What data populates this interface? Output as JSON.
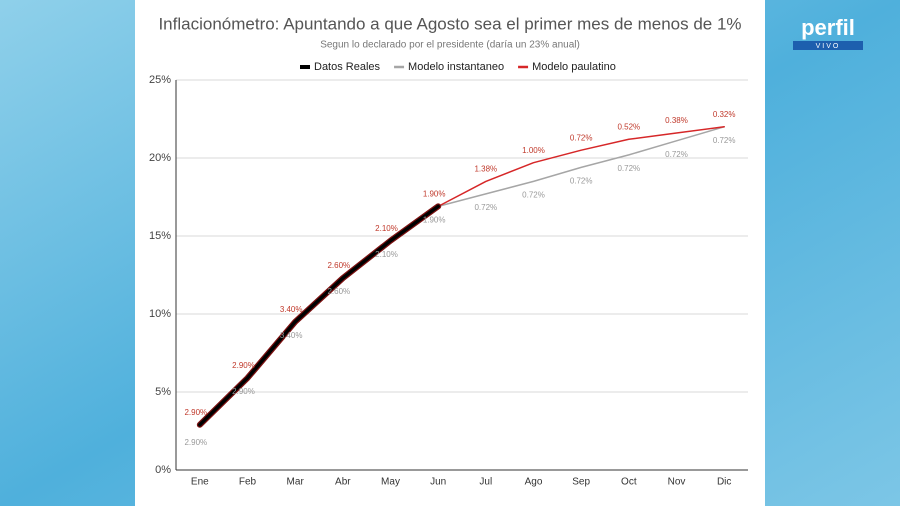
{
  "chart_data": {
    "type": "line",
    "title": "Inflacionómetro: Apuntando a que Agosto sea el primer mes de menos de 1%",
    "subtitle": "Segun lo declarado por el presidente (daría un 23% anual)",
    "categories": [
      "Ene",
      "Feb",
      "Mar",
      "Abr",
      "May",
      "Jun",
      "Jul",
      "Ago",
      "Sep",
      "Oct",
      "Nov",
      "Dic"
    ],
    "series": [
      {
        "name": "Datos Reales",
        "color": "#000000",
        "values": [
          2.9,
          5.9,
          9.5,
          12.3,
          14.7,
          16.9,
          null,
          null,
          null,
          null,
          null,
          null
        ]
      },
      {
        "name": "Modelo instantaneo",
        "color": "#a6a6a6",
        "values": [
          2.9,
          5.9,
          9.5,
          12.3,
          14.7,
          16.9,
          17.7,
          18.5,
          19.4,
          20.2,
          21.1,
          22.0
        ],
        "point_labels": [
          "2.90%",
          "2.90%",
          "3.40%",
          "2.60%",
          "2.10%",
          "1.90%",
          "0.72%",
          "0.72%",
          "0.72%",
          "0.72%",
          "0.72%",
          "0.72%"
        ]
      },
      {
        "name": "Modelo paulatino",
        "color": "#d62728",
        "values": [
          2.9,
          5.9,
          9.5,
          12.3,
          14.7,
          16.9,
          18.5,
          19.7,
          20.5,
          21.2,
          21.6,
          22.0
        ],
        "point_labels": [
          "2.90%",
          "2.90%",
          "3.40%",
          "2.60%",
          "2.10%",
          "1.90%",
          "1.38%",
          "1.00%",
          "0.72%",
          "0.52%",
          "0.38%",
          "0.32%"
        ]
      }
    ],
    "ylim": [
      0,
      25
    ],
    "yticks": [
      {
        "value": 0,
        "label": "0%"
      },
      {
        "value": 5,
        "label": "5%"
      },
      {
        "value": 10,
        "label": "10%"
      },
      {
        "value": 15,
        "label": "15%"
      },
      {
        "value": 20,
        "label": "20%"
      },
      {
        "value": 25,
        "label": "25%"
      }
    ],
    "grid": true,
    "legend": "top"
  },
  "logo": {
    "name": "perfil",
    "tag": "VIVO"
  }
}
